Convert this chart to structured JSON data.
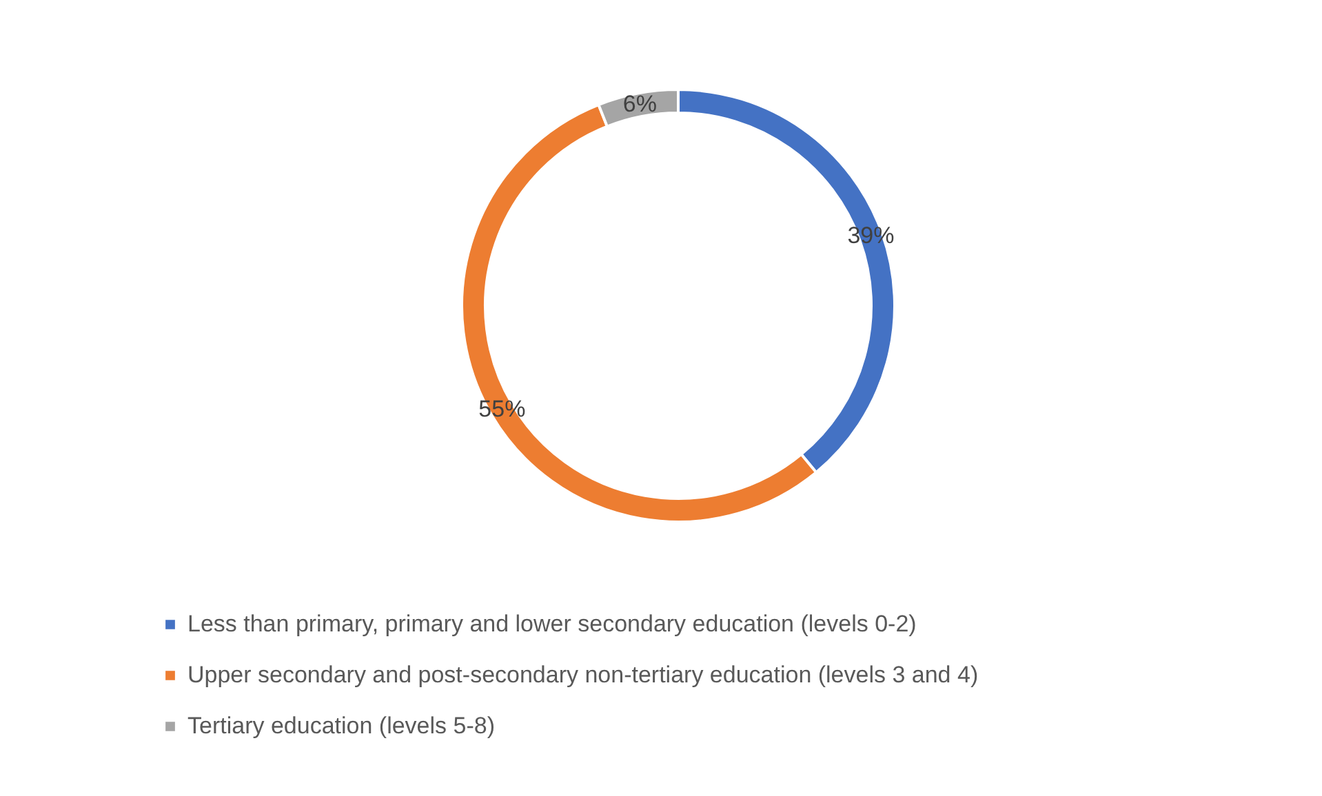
{
  "chart_data": {
    "type": "donut",
    "categories": [
      "Less than primary, primary and lower secondary education (levels 0-2)",
      "Upper secondary and post-secondary non-tertiary education (levels 3 and 4)",
      "Tertiary education (levels 5-8)"
    ],
    "values": [
      39,
      55,
      6
    ],
    "colors": [
      "#4472c4",
      "#ed7d31",
      "#a5a5a5"
    ],
    "value_labels": [
      "39%",
      "55%",
      "6%"
    ],
    "legend": "bottom"
  }
}
